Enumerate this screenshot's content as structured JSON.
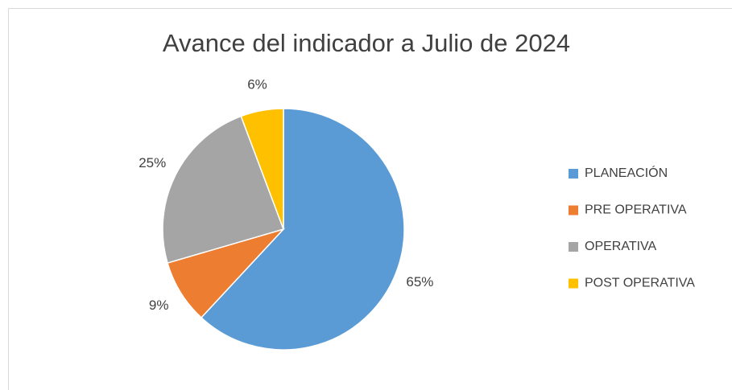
{
  "chart_data": {
    "type": "pie",
    "title": "Avance del indicador a Julio de 2024",
    "categories": [
      "PLANEACIÓN",
      "PRE OPERATIVA",
      "OPERATIVA",
      "POST OPERATIVA"
    ],
    "values": [
      65,
      9,
      25,
      6
    ],
    "value_labels": [
      "65%",
      "9%",
      "25%",
      "6%"
    ],
    "colors": [
      "#5b9bd5",
      "#ed7d31",
      "#a5a5a5",
      "#ffc000"
    ],
    "legend": "right"
  }
}
